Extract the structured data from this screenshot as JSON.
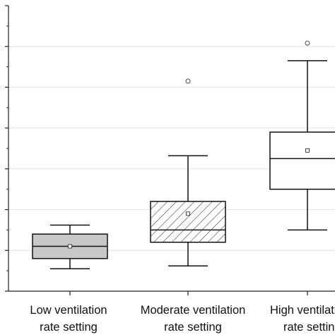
{
  "chart_data": {
    "type": "boxplot",
    "title": "",
    "xlabel": "",
    "ylabel": "",
    "ylim": [
      0,
      7
    ],
    "major_ticks": [
      0,
      1,
      2,
      3,
      4,
      5,
      6,
      7
    ],
    "minor_tick_step": 0.5,
    "grid": "horizontal",
    "categories": [
      {
        "label_lines": [
          "Low ventilation",
          "rate setting"
        ]
      },
      {
        "label_lines": [
          "Moderate ventilation",
          "rate setting"
        ]
      },
      {
        "label_lines": [
          "High ventilation",
          "rate setting"
        ]
      }
    ],
    "boxes": [
      {
        "whisker_low": 0.55,
        "q1": 0.8,
        "median": 1.1,
        "q3": 1.4,
        "whisker_high": 1.62,
        "mean": 1.1,
        "outliers": [],
        "fill": "#c8c8c8",
        "pattern": "none"
      },
      {
        "whisker_low": 0.62,
        "q1": 1.2,
        "median": 1.5,
        "q3": 2.2,
        "whisker_high": 3.32,
        "mean": 1.9,
        "outliers": [
          5.15
        ],
        "fill": "#ffffff",
        "pattern": "diagonal-hatch"
      },
      {
        "whisker_low": 1.5,
        "q1": 2.5,
        "median": 3.25,
        "q3": 3.9,
        "whisker_high": 5.65,
        "mean": 3.45,
        "outliers": [
          6.08
        ],
        "fill": "#ffffff",
        "pattern": "none"
      }
    ]
  }
}
